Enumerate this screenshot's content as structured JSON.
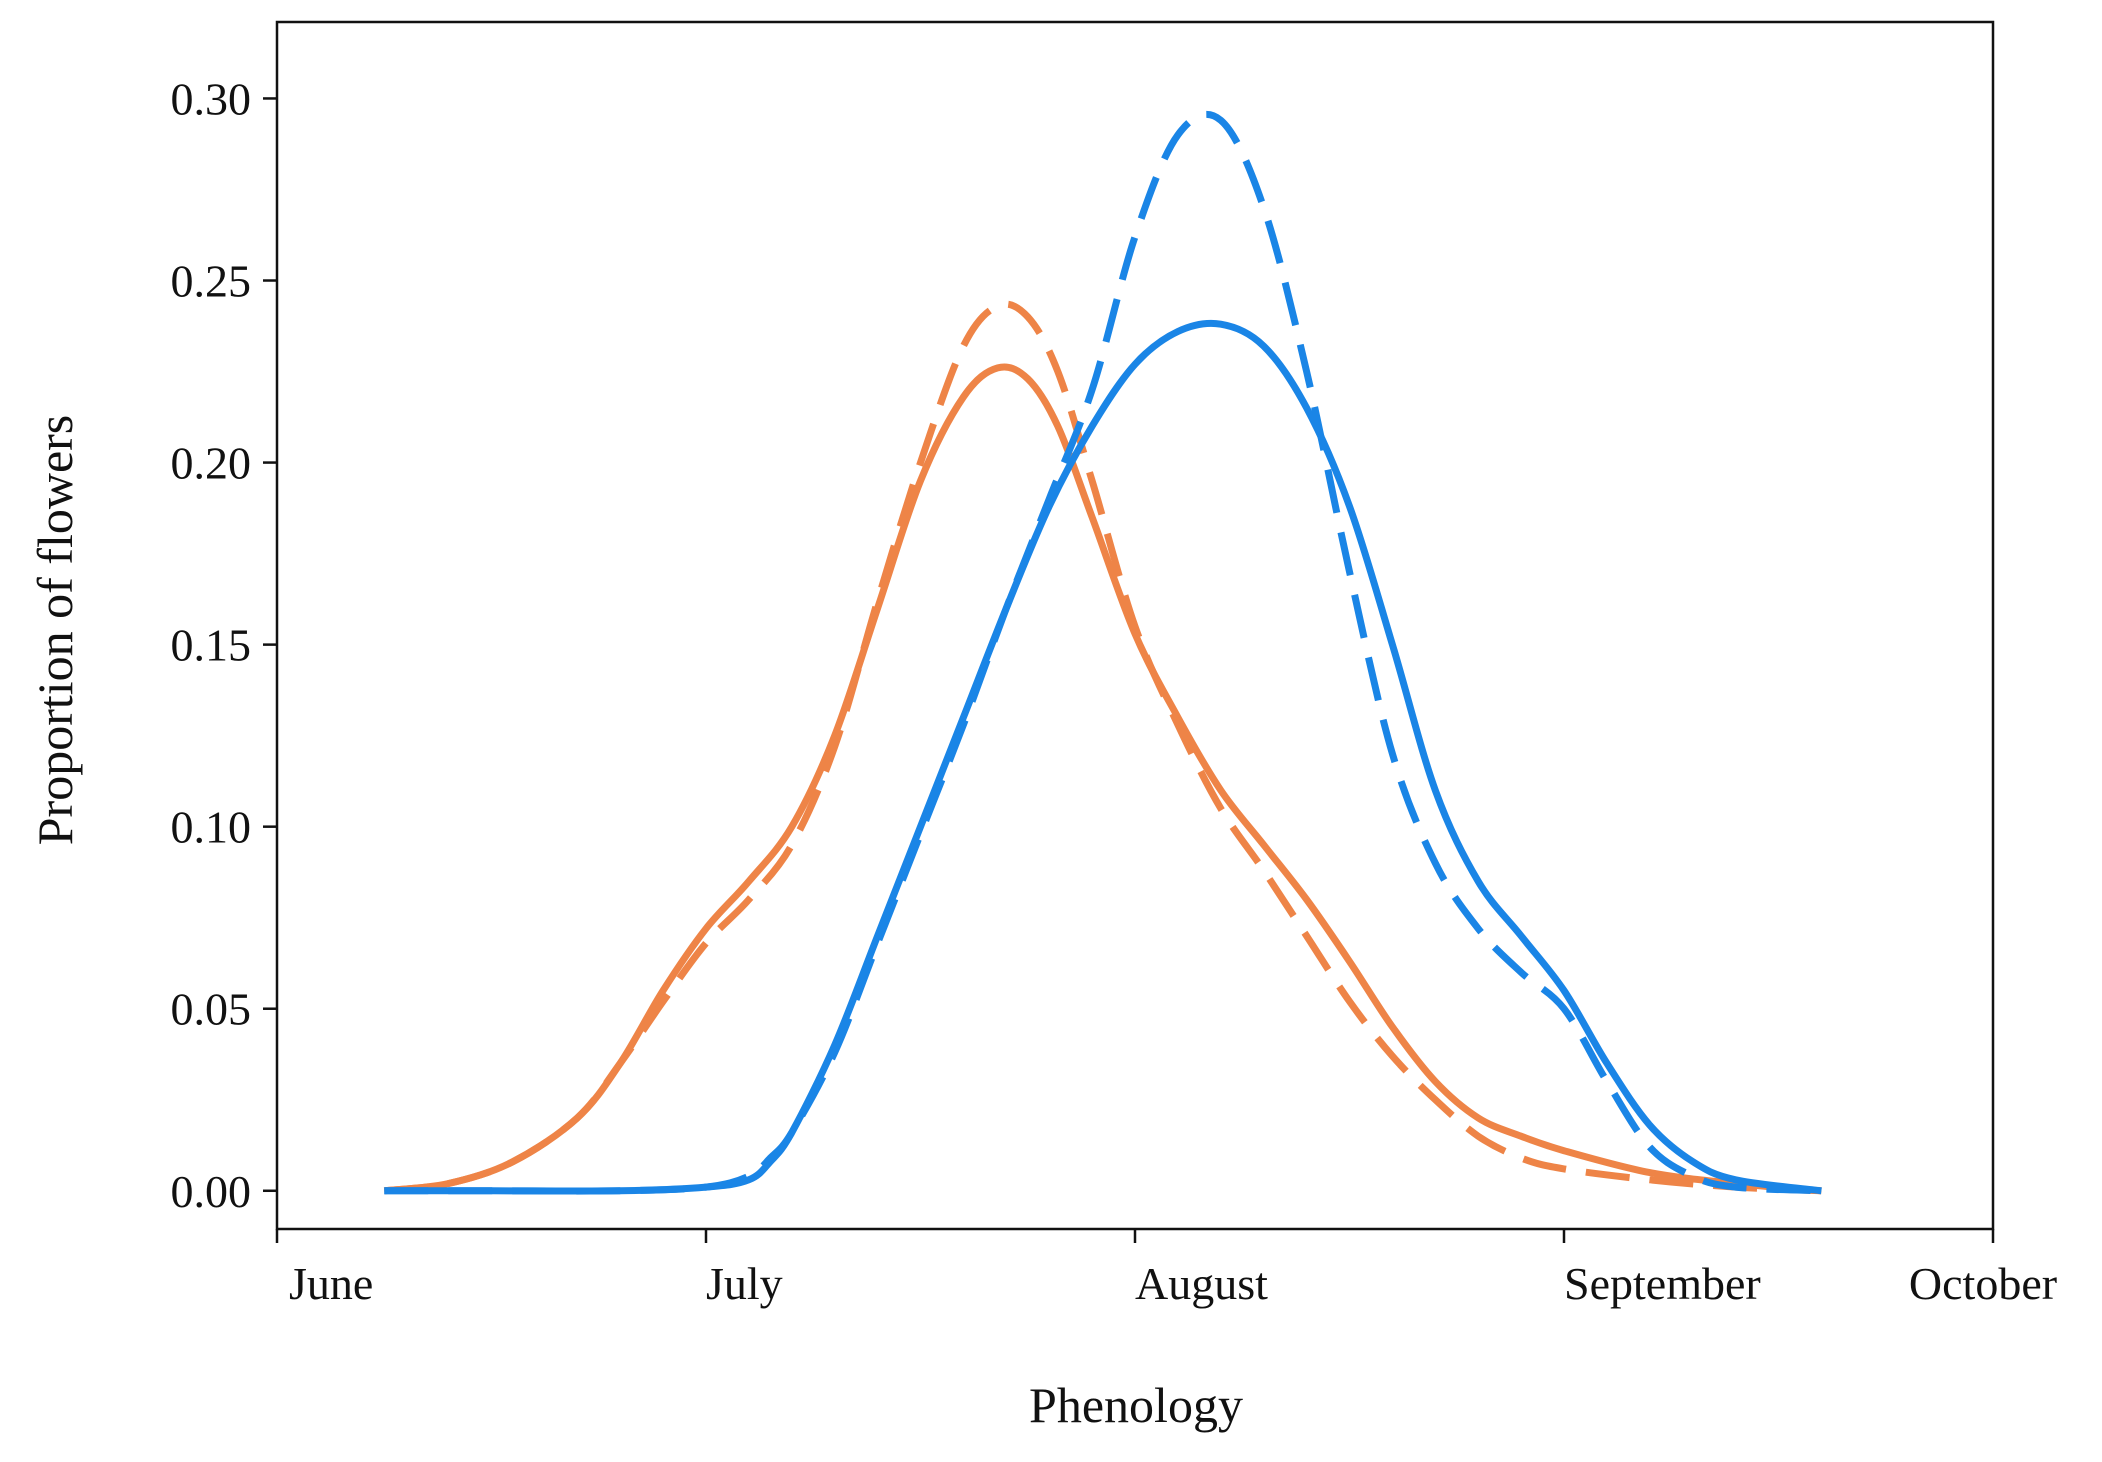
{
  "chart_data": {
    "type": "line",
    "title": "",
    "xlabel": "Phenology",
    "ylabel": "Proportion of flowers",
    "x_ticks": [
      {
        "label": "June",
        "value": 0
      },
      {
        "label": "July",
        "value": 1
      },
      {
        "label": "August",
        "value": 2
      },
      {
        "label": "September",
        "value": 3
      },
      {
        "label": "October",
        "value": 4
      }
    ],
    "y_ticks": [
      {
        "label": "0.00",
        "value": 0.0
      },
      {
        "label": "0.05",
        "value": 0.05
      },
      {
        "label": "0.10",
        "value": 0.1
      },
      {
        "label": "0.15",
        "value": 0.15
      },
      {
        "label": "0.20",
        "value": 0.2
      },
      {
        "label": "0.25",
        "value": 0.25
      },
      {
        "label": "0.30",
        "value": 0.3
      }
    ],
    "xlim": [
      0,
      4
    ],
    "ylim": [
      -0.0105,
      0.321
    ],
    "grid": false,
    "legend": null,
    "series": [
      {
        "name": "orange-solid",
        "color": "#ee8447",
        "dashed": false,
        "points": [
          [
            0.25,
            0.0
          ],
          [
            0.4,
            0.002
          ],
          [
            0.55,
            0.008
          ],
          [
            0.7,
            0.02
          ],
          [
            0.8,
            0.035
          ],
          [
            0.9,
            0.055
          ],
          [
            1.0,
            0.072
          ],
          [
            1.1,
            0.085
          ],
          [
            1.2,
            0.1
          ],
          [
            1.3,
            0.125
          ],
          [
            1.4,
            0.16
          ],
          [
            1.5,
            0.195
          ],
          [
            1.6,
            0.218
          ],
          [
            1.68,
            0.226
          ],
          [
            1.75,
            0.223
          ],
          [
            1.82,
            0.21
          ],
          [
            1.9,
            0.185
          ],
          [
            2.0,
            0.153
          ],
          [
            2.1,
            0.13
          ],
          [
            2.2,
            0.11
          ],
          [
            2.3,
            0.095
          ],
          [
            2.4,
            0.08
          ],
          [
            2.5,
            0.063
          ],
          [
            2.6,
            0.045
          ],
          [
            2.7,
            0.03
          ],
          [
            2.8,
            0.02
          ],
          [
            2.9,
            0.015
          ],
          [
            3.0,
            0.011
          ],
          [
            3.2,
            0.005
          ],
          [
            3.4,
            0.002
          ],
          [
            3.6,
            0.0
          ]
        ]
      },
      {
        "name": "orange-dashed",
        "color": "#ee8447",
        "dashed": true,
        "points": [
          [
            0.25,
            0.0
          ],
          [
            0.4,
            0.002
          ],
          [
            0.55,
            0.008
          ],
          [
            0.7,
            0.02
          ],
          [
            0.8,
            0.035
          ],
          [
            0.9,
            0.052
          ],
          [
            1.0,
            0.068
          ],
          [
            1.1,
            0.08
          ],
          [
            1.2,
            0.095
          ],
          [
            1.3,
            0.122
          ],
          [
            1.4,
            0.162
          ],
          [
            1.5,
            0.2
          ],
          [
            1.6,
            0.232
          ],
          [
            1.68,
            0.243
          ],
          [
            1.75,
            0.24
          ],
          [
            1.82,
            0.225
          ],
          [
            1.9,
            0.195
          ],
          [
            2.0,
            0.155
          ],
          [
            2.1,
            0.128
          ],
          [
            2.2,
            0.105
          ],
          [
            2.3,
            0.088
          ],
          [
            2.4,
            0.07
          ],
          [
            2.5,
            0.052
          ],
          [
            2.6,
            0.037
          ],
          [
            2.7,
            0.025
          ],
          [
            2.8,
            0.015
          ],
          [
            2.9,
            0.009
          ],
          [
            3.0,
            0.006
          ],
          [
            3.2,
            0.003
          ],
          [
            3.4,
            0.001
          ],
          [
            3.6,
            0.0
          ]
        ]
      },
      {
        "name": "blue-solid",
        "color": "#1a85e6",
        "dashed": false,
        "points": [
          [
            0.25,
            0.0
          ],
          [
            0.5,
            0.0
          ],
          [
            0.8,
            0.0
          ],
          [
            1.0,
            0.001
          ],
          [
            1.1,
            0.003
          ],
          [
            1.15,
            0.008
          ],
          [
            1.2,
            0.016
          ],
          [
            1.3,
            0.04
          ],
          [
            1.4,
            0.07
          ],
          [
            1.5,
            0.1
          ],
          [
            1.6,
            0.13
          ],
          [
            1.7,
            0.16
          ],
          [
            1.8,
            0.188
          ],
          [
            1.9,
            0.21
          ],
          [
            2.0,
            0.227
          ],
          [
            2.1,
            0.236
          ],
          [
            2.2,
            0.238
          ],
          [
            2.3,
            0.232
          ],
          [
            2.4,
            0.215
          ],
          [
            2.5,
            0.188
          ],
          [
            2.6,
            0.15
          ],
          [
            2.7,
            0.11
          ],
          [
            2.8,
            0.085
          ],
          [
            2.9,
            0.07
          ],
          [
            3.0,
            0.055
          ],
          [
            3.1,
            0.035
          ],
          [
            3.2,
            0.018
          ],
          [
            3.3,
            0.008
          ],
          [
            3.4,
            0.003
          ],
          [
            3.6,
            0.0
          ]
        ]
      },
      {
        "name": "blue-dashed",
        "color": "#1a85e6",
        "dashed": true,
        "points": [
          [
            0.25,
            0.0
          ],
          [
            0.5,
            0.0
          ],
          [
            0.8,
            0.0
          ],
          [
            1.0,
            0.001
          ],
          [
            1.1,
            0.004
          ],
          [
            1.15,
            0.009
          ],
          [
            1.2,
            0.016
          ],
          [
            1.3,
            0.038
          ],
          [
            1.4,
            0.068
          ],
          [
            1.5,
            0.098
          ],
          [
            1.6,
            0.128
          ],
          [
            1.7,
            0.16
          ],
          [
            1.8,
            0.19
          ],
          [
            1.9,
            0.22
          ],
          [
            2.0,
            0.262
          ],
          [
            2.1,
            0.29
          ],
          [
            2.2,
            0.294
          ],
          [
            2.3,
            0.27
          ],
          [
            2.4,
            0.225
          ],
          [
            2.5,
            0.17
          ],
          [
            2.6,
            0.12
          ],
          [
            2.7,
            0.09
          ],
          [
            2.8,
            0.072
          ],
          [
            2.9,
            0.06
          ],
          [
            3.0,
            0.05
          ],
          [
            3.1,
            0.03
          ],
          [
            3.2,
            0.012
          ],
          [
            3.3,
            0.004
          ],
          [
            3.4,
            0.001
          ],
          [
            3.6,
            0.0
          ]
        ]
      }
    ]
  }
}
